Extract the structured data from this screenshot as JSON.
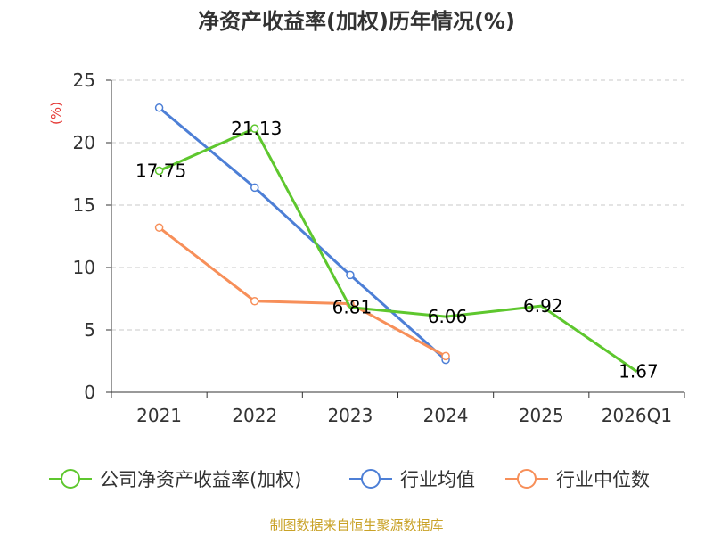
{
  "chart_data": {
    "type": "line",
    "title": "净资产收益率(加权)历年情况(%)",
    "unit_label": "(%)",
    "categories": [
      "2021",
      "2022",
      "2023",
      "2024",
      "2025",
      "2026Q1"
    ],
    "ylim": [
      0,
      25
    ],
    "yticks": [
      0,
      5,
      10,
      15,
      20,
      25
    ],
    "grid": true,
    "legend_position": "bottom",
    "series": [
      {
        "name": "公司净资产收益率(加权)",
        "color": "#5ec72e",
        "values": [
          17.75,
          21.13,
          6.81,
          6.06,
          6.92,
          1.67
        ],
        "labels": [
          "17.75",
          "21.13",
          "6.81",
          "6.06",
          "6.92",
          "1.67"
        ],
        "show_markers": [
          true,
          true,
          false,
          false,
          false,
          false
        ]
      },
      {
        "name": "行业均值",
        "color": "#4d7fd6",
        "values": [
          22.8,
          16.4,
          9.4,
          2.6,
          null,
          null
        ],
        "show_markers": [
          true,
          true,
          true,
          true,
          false,
          false
        ]
      },
      {
        "name": "行业中位数",
        "color": "#f78f59",
        "values": [
          13.2,
          7.3,
          7.1,
          2.9,
          null,
          null
        ],
        "show_markers": [
          true,
          true,
          true,
          true,
          false,
          false
        ]
      }
    ]
  },
  "source": "制图数据来自恒生聚源数据库"
}
